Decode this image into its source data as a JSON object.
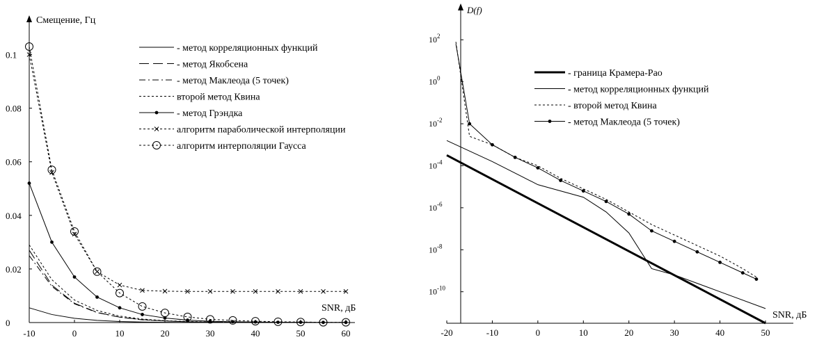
{
  "chart_data": [
    {
      "type": "line",
      "title": "",
      "ylabel": "Смещение, Гц",
      "xlabel": "SNR, дБ",
      "xlim": [
        -10,
        60
      ],
      "ylim": [
        0,
        0.11
      ],
      "x_ticks": [
        -10,
        0,
        10,
        20,
        30,
        40,
        50,
        60
      ],
      "x_tick_labels": [
        "-10",
        "0",
        "10",
        "20",
        "30",
        "40",
        "50",
        "60"
      ],
      "y_ticks": [
        0,
        0.02,
        0.04,
        0.06,
        0.08,
        0.1
      ],
      "y_tick_labels": [
        "0",
        "0.02",
        "0.04",
        "0.06",
        "0.08",
        "0.1"
      ],
      "grid": false,
      "legend_position": "top-right",
      "x": [
        -10,
        -5,
        0,
        5,
        10,
        15,
        20,
        25,
        30,
        35,
        40,
        45,
        50,
        55,
        60
      ],
      "series": [
        {
          "name": "- метод корреляционных функций",
          "style": "solid",
          "marker": "none",
          "values": [
            0.0055,
            0.003,
            0.0016,
            0.0008,
            0.0004,
            0.0002,
            0.0001,
            5e-05,
            3e-05,
            2e-05,
            1e-05,
            1e-05,
            1e-05,
            1e-05,
            1e-05
          ]
        },
        {
          "name": "- метод Якобсена",
          "style": "longdash",
          "marker": "none",
          "values": [
            0.027,
            0.014,
            0.0072,
            0.0038,
            0.002,
            0.0011,
            0.0006,
            0.0003,
            0.00015,
            0.0001,
            5e-05,
            3e-05,
            2e-05,
            1e-05,
            1e-05
          ]
        },
        {
          "name": "- метод Маклеода (5 точек)",
          "style": "dashdot",
          "marker": "none",
          "values": [
            0.025,
            0.0135,
            0.007,
            0.0037,
            0.002,
            0.001,
            0.0006,
            0.0003,
            0.00015,
            0.0001,
            5e-05,
            3e-05,
            2e-05,
            1e-05,
            1e-05
          ]
        },
        {
          "name": "второй метод Квина",
          "style": "dotted",
          "marker": "none",
          "values": [
            0.029,
            0.016,
            0.0084,
            0.0045,
            0.0024,
            0.0013,
            0.0007,
            0.0004,
            0.0002,
            0.0001,
            5e-05,
            3e-05,
            2e-05,
            1e-05,
            1e-05
          ]
        },
        {
          "name": "- метод Грэндка",
          "style": "solid",
          "marker": "dot",
          "values": [
            0.052,
            0.03,
            0.017,
            0.0095,
            0.0055,
            0.003,
            0.0017,
            0.0009,
            0.0005,
            0.0003,
            0.0002,
            0.0001,
            0.0001,
            5e-05,
            5e-05
          ]
        },
        {
          "name": "алгоритм параболической интерполяции",
          "style": "dotted",
          "marker": "x",
          "values": [
            0.1,
            0.056,
            0.033,
            0.019,
            0.014,
            0.012,
            0.0117,
            0.0116,
            0.0116,
            0.0116,
            0.0116,
            0.0116,
            0.0116,
            0.0116,
            0.0116
          ]
        },
        {
          "name": "алгоритм интерполяции Гаусса",
          "style": "dotted",
          "marker": "circle",
          "values": [
            0.103,
            0.057,
            0.034,
            0.019,
            0.011,
            0.006,
            0.0036,
            0.0021,
            0.0012,
            0.0008,
            0.0005,
            0.0003,
            0.0002,
            0.0001,
            0.0001
          ]
        }
      ]
    },
    {
      "type": "line",
      "title": "",
      "ylabel": "D(f)",
      "xlabel": "SNR, дБ",
      "yscale": "log",
      "xlim": [
        -20,
        50
      ],
      "ylim_log10": [
        -11.5,
        3
      ],
      "x_ticks": [
        -20,
        -10,
        0,
        10,
        20,
        30,
        40,
        50
      ],
      "x_tick_labels": [
        "-20",
        "-10",
        "0",
        "10",
        "20",
        "30",
        "40",
        "50"
      ],
      "y_ticks_log10": [
        2,
        0,
        -2,
        -4,
        -6,
        -8,
        -10
      ],
      "y_tick_labels": [
        {
          "base": "10",
          "exp": "2"
        },
        {
          "base": "10",
          "exp": "0"
        },
        {
          "base": "10",
          "exp": "-2"
        },
        {
          "base": "10",
          "exp": "-4"
        },
        {
          "base": "10",
          "exp": "-6"
        },
        {
          "base": "10",
          "exp": "-8"
        },
        {
          "base": "10",
          "exp": "-10"
        }
      ],
      "grid": false,
      "legend_position": "top-center",
      "series": [
        {
          "name": "- граница Крамера-Рао",
          "style": "thick",
          "marker": "none",
          "x": [
            -20,
            50
          ],
          "values_log10": [
            -3.5,
            -11.5
          ]
        },
        {
          "name": "- метод корреляционных функций",
          "style": "solid",
          "marker": "none",
          "x": [
            -20,
            -10,
            0,
            10,
            15,
            20,
            25,
            30,
            40,
            50
          ],
          "values_log10": [
            -2.8,
            -3.8,
            -4.9,
            -5.5,
            -6.2,
            -7.2,
            -8.9,
            -9.2,
            -10.0,
            -10.8
          ]
        },
        {
          "name": "- второй метод Квина",
          "style": "dotted",
          "marker": "none",
          "x": [
            -18,
            -15,
            -10,
            -5,
            0,
            5,
            10,
            15,
            20,
            25,
            30,
            35,
            40,
            45,
            48
          ],
          "values_log10": [
            1.9,
            -2.6,
            -3.0,
            -3.6,
            -4.0,
            -4.6,
            -5.1,
            -5.6,
            -6.2,
            -6.8,
            -7.3,
            -7.8,
            -8.3,
            -8.9,
            -9.3
          ]
        },
        {
          "name": "- метод Маклеода (5 точек)",
          "style": "solid",
          "marker": "dot",
          "x": [
            -18,
            -15,
            -10,
            -5,
            0,
            5,
            10,
            15,
            20,
            25,
            30,
            35,
            40,
            45,
            48
          ],
          "values_log10": [
            1.8,
            -2.0,
            -3.0,
            -3.6,
            -4.1,
            -4.7,
            -5.2,
            -5.7,
            -6.3,
            -7.1,
            -7.6,
            -8.1,
            -8.6,
            -9.1,
            -9.4
          ]
        }
      ]
    }
  ]
}
